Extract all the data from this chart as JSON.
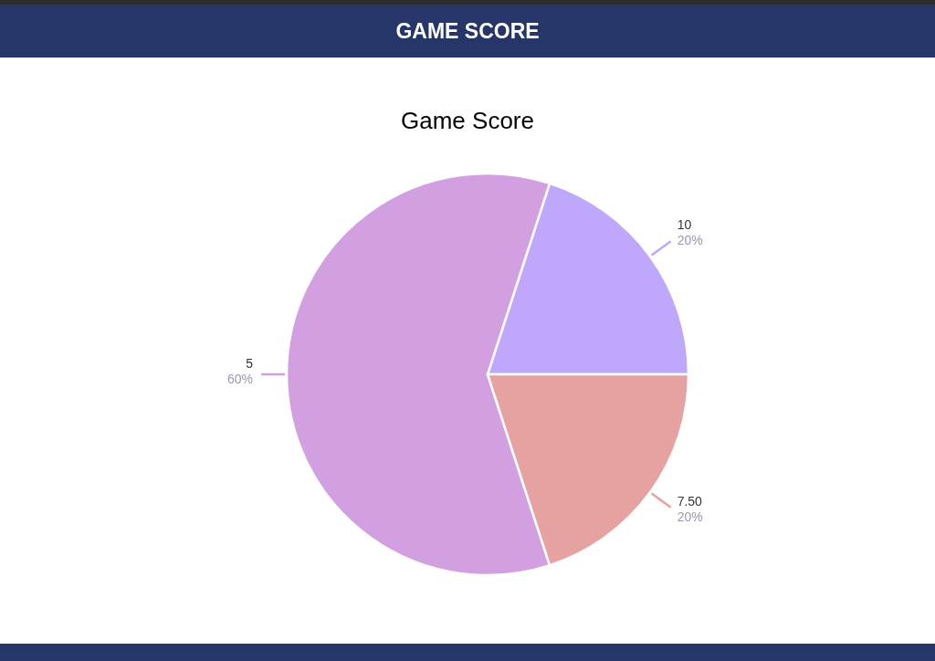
{
  "chart_data": {
    "type": "pie",
    "title": "Game Score",
    "annotations": [
      "GAME SCORE"
    ],
    "categories": [
      "10",
      "5",
      "7.50"
    ],
    "values": [
      20,
      60,
      20
    ],
    "value_labels": [
      "20%",
      "60%",
      "20%"
    ],
    "colors": [
      "#bfa8fb",
      "#d29fe0",
      "#e6a2a0"
    ]
  }
}
